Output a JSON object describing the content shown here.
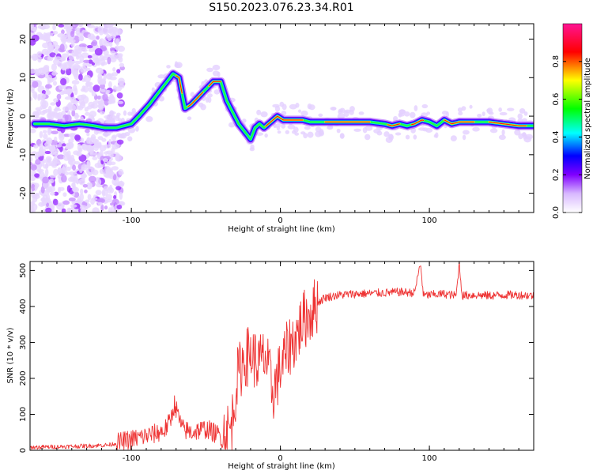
{
  "title": "S150.2023.076.23.34.R01",
  "chart_data": [
    {
      "type": "heatmap",
      "xlabel": "Height of straight line (km)",
      "ylabel": "Frequency (Hz)",
      "xlim": [
        -168,
        170
      ],
      "ylim": [
        -25,
        24
      ],
      "xticks": [
        -100,
        0,
        100
      ],
      "yticks": [
        -20,
        -10,
        0,
        10,
        20
      ],
      "ridge": {
        "x": [
          -165,
          -155,
          -145,
          -135,
          -125,
          -118,
          -110,
          -100,
          -95,
          -88,
          -82,
          -78,
          -72,
          -68,
          -64,
          -60,
          -55,
          -50,
          -45,
          -40,
          -36,
          -32,
          -28,
          -24,
          -20,
          -17,
          -14,
          -11,
          -8,
          -5,
          -2,
          2,
          6,
          10,
          15,
          20,
          30,
          40,
          50,
          60,
          70,
          75,
          80,
          85,
          90,
          95,
          100,
          105,
          110,
          115,
          120,
          130,
          140,
          150,
          160,
          170
        ],
        "y": [
          -2,
          -2,
          -2.5,
          -2,
          -2.5,
          -3,
          -3,
          -2,
          0,
          3,
          6,
          8,
          11,
          10,
          2,
          3,
          5,
          7,
          9,
          9,
          4,
          1,
          -2,
          -4,
          -6,
          -3,
          -2,
          -3,
          -2,
          -1,
          0,
          -1,
          -1,
          -1,
          -1,
          -1.5,
          -1.5,
          -1.5,
          -1.5,
          -1.5,
          -2,
          -2.5,
          -2,
          -2.5,
          -2,
          -1,
          -1.5,
          -2.5,
          -1,
          -2,
          -1.5,
          -1.5,
          -1.5,
          -2,
          -2.5,
          -2.5
        ]
      },
      "colorbar": {
        "label": "Normalized spectral amplitude",
        "range": [
          0.0,
          1.0
        ],
        "ticks": [
          0.0,
          0.2,
          0.4,
          0.6,
          0.8
        ],
        "tick_labels": [
          "0.0",
          "0.2",
          "0.4",
          "0.6",
          "0.8"
        ],
        "colors": [
          "#ffffff",
          "#8000ff",
          "#0000ff",
          "#00ffff",
          "#00ff00",
          "#ffff00",
          "#ff0000",
          "#ff1493"
        ]
      }
    },
    {
      "type": "line",
      "xlabel": "Height of straight line (km)",
      "ylabel": "SNR (10 * v/v)",
      "xlim": [
        -168,
        170
      ],
      "ylim": [
        0,
        525
      ],
      "xticks": [
        -100,
        0,
        100
      ],
      "yticks": [
        0,
        100,
        200,
        300,
        400,
        500
      ],
      "color": "#ee3333",
      "series": [
        {
          "name": "SNR",
          "x": [
            -168,
            -150,
            -130,
            -115,
            -105,
            -95,
            -85,
            -78,
            -74,
            -71,
            -66,
            -60,
            -50,
            -40,
            -33,
            -29,
            -25,
            -20,
            -15,
            -10,
            -5,
            -2,
            2,
            6,
            10,
            15,
            20,
            25,
            30,
            40,
            50,
            60,
            70,
            80,
            90,
            94,
            96,
            100,
            110,
            118,
            120,
            122,
            130,
            140,
            150,
            160,
            170
          ],
          "y": [
            8,
            10,
            12,
            15,
            25,
            35,
            45,
            55,
            80,
            130,
            60,
            50,
            60,
            40,
            60,
            200,
            250,
            270,
            240,
            260,
            160,
            200,
            250,
            290,
            310,
            360,
            380,
            410,
            425,
            432,
            435,
            436,
            438,
            440,
            438,
            520,
            430,
            432,
            435,
            430,
            520,
            430,
            432,
            430,
            432,
            432,
            430
          ]
        }
      ]
    }
  ]
}
